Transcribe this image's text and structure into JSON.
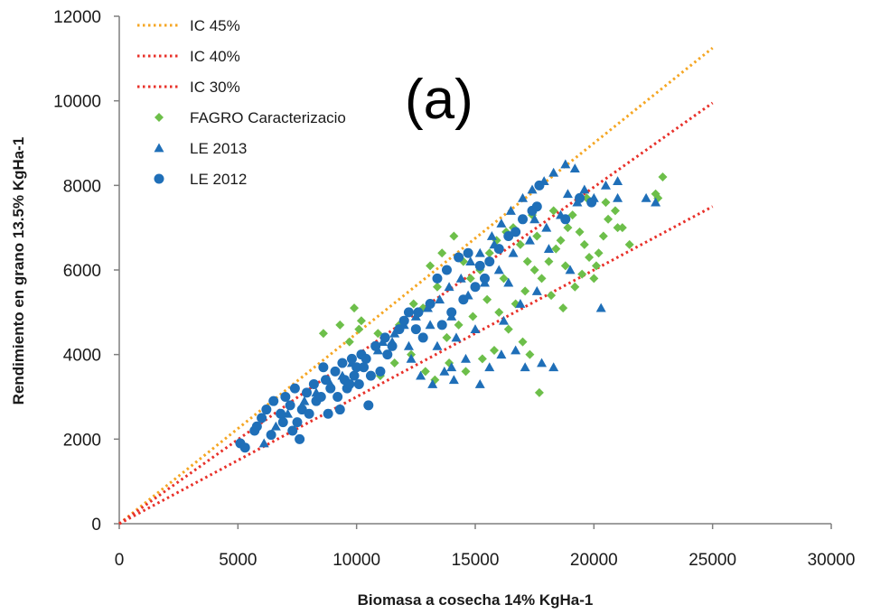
{
  "colors": {
    "ic45": "#f5a623",
    "ic40": "#e8312a",
    "ic30": "#e8312a",
    "fagro": "#6dbf4a",
    "le2013": "#1f6fb8",
    "le2012": "#1f6fb8",
    "axis": "#7f7f7f"
  },
  "chart_data": {
    "type": "scatter",
    "title": "",
    "panel_label": "(a)",
    "xlabel": "Biomasa a cosecha 14% KgHa-1",
    "ylabel": "Rendimiento en grano 13.5% KgHa-1",
    "xlim": [
      0,
      30000
    ],
    "ylim": [
      0,
      12000
    ],
    "x_ticks": [
      "0",
      "5000",
      "10000",
      "15000",
      "20000",
      "25000",
      "30000"
    ],
    "y_ticks": [
      "0",
      "2000",
      "4000",
      "6000",
      "8000",
      "10000",
      "12000"
    ],
    "grid": false,
    "legend_position": "top-left",
    "legend": [
      {
        "label": "IC 45%",
        "kind": "dotted-line",
        "color": "#f5a623"
      },
      {
        "label": "IC 40%",
        "kind": "dotted-line",
        "color": "#e8312a"
      },
      {
        "label": "IC 30%",
        "kind": "dotted-line",
        "color": "#e8312a"
      },
      {
        "label": "FAGRO Caracterizacio",
        "kind": "diamond",
        "color": "#6dbf4a"
      },
      {
        "label": "LE 2013",
        "kind": "triangle",
        "color": "#1f6fb8"
      },
      {
        "label": "LE 2012",
        "kind": "circle",
        "color": "#1f6fb8"
      }
    ],
    "lines": [
      {
        "name": "IC 45%",
        "x": [
          0,
          25000
        ],
        "y": [
          0,
          11250
        ],
        "color": "#f5a623"
      },
      {
        "name": "IC 40%",
        "x": [
          0,
          25000
        ],
        "y": [
          0,
          9950
        ],
        "color": "#e8312a"
      },
      {
        "name": "IC 30%",
        "x": [
          0,
          25000
        ],
        "y": [
          0,
          7500
        ],
        "color": "#e8312a"
      }
    ],
    "series": [
      {
        "name": "FAGRO Caracterizacio",
        "marker": "diamond",
        "color": "#6dbf4a",
        "points": [
          [
            8600,
            4500
          ],
          [
            9300,
            4700
          ],
          [
            9900,
            5100
          ],
          [
            10200,
            4800
          ],
          [
            10100,
            4600
          ],
          [
            10900,
            4500
          ],
          [
            9700,
            4300
          ],
          [
            11800,
            4700
          ],
          [
            12400,
            5200
          ],
          [
            12800,
            5100
          ],
          [
            13400,
            5600
          ],
          [
            13100,
            6100
          ],
          [
            13600,
            6400
          ],
          [
            14100,
            6800
          ],
          [
            14500,
            6200
          ],
          [
            14800,
            5800
          ],
          [
            15200,
            6000
          ],
          [
            15600,
            6400
          ],
          [
            15900,
            6700
          ],
          [
            16300,
            6900
          ],
          [
            16600,
            7000
          ],
          [
            16900,
            6600
          ],
          [
            17200,
            6200
          ],
          [
            17500,
            6000
          ],
          [
            17800,
            5800
          ],
          [
            18100,
            6200
          ],
          [
            18400,
            6500
          ],
          [
            18600,
            6700
          ],
          [
            18900,
            7000
          ],
          [
            19100,
            7300
          ],
          [
            19400,
            6900
          ],
          [
            19600,
            6600
          ],
          [
            19800,
            6300
          ],
          [
            20100,
            6100
          ],
          [
            20400,
            6800
          ],
          [
            20600,
            7200
          ],
          [
            20900,
            7400
          ],
          [
            21200,
            7000
          ],
          [
            21500,
            6600
          ],
          [
            22700,
            7700
          ],
          [
            22900,
            8200
          ],
          [
            22600,
            7800
          ],
          [
            16000,
            5000
          ],
          [
            16400,
            4600
          ],
          [
            17000,
            4300
          ],
          [
            17300,
            4000
          ],
          [
            17700,
            3100
          ],
          [
            15800,
            4100
          ],
          [
            15300,
            3900
          ],
          [
            14600,
            3600
          ],
          [
            13900,
            3800
          ],
          [
            13300,
            3400
          ],
          [
            12900,
            3600
          ],
          [
            12300,
            4000
          ],
          [
            11600,
            3800
          ],
          [
            11000,
            3500
          ],
          [
            18200,
            5400
          ],
          [
            18700,
            5100
          ],
          [
            19200,
            5600
          ],
          [
            19500,
            5900
          ],
          [
            20000,
            5800
          ],
          [
            20200,
            6400
          ],
          [
            17100,
            5500
          ],
          [
            16700,
            5200
          ],
          [
            15500,
            5300
          ],
          [
            14900,
            4900
          ],
          [
            14300,
            4700
          ],
          [
            13800,
            4400
          ],
          [
            17600,
            6800
          ],
          [
            18300,
            7400
          ],
          [
            19700,
            7700
          ],
          [
            20500,
            7600
          ],
          [
            21000,
            7000
          ],
          [
            17400,
            7300
          ],
          [
            16200,
            5800
          ],
          [
            18800,
            6100
          ]
        ]
      },
      {
        "name": "LE 2013",
        "marker": "triangle",
        "color": "#1f6fb8",
        "points": [
          [
            6100,
            1900
          ],
          [
            6600,
            2300
          ],
          [
            7100,
            2600
          ],
          [
            7800,
            2900
          ],
          [
            8300,
            3100
          ],
          [
            8900,
            3300
          ],
          [
            9400,
            3500
          ],
          [
            9800,
            3800
          ],
          [
            10300,
            4000
          ],
          [
            10900,
            4100
          ],
          [
            11500,
            4300
          ],
          [
            12000,
            4700
          ],
          [
            12500,
            4900
          ],
          [
            13000,
            5100
          ],
          [
            13500,
            5300
          ],
          [
            13900,
            5600
          ],
          [
            14400,
            5800
          ],
          [
            14800,
            6200
          ],
          [
            15200,
            6400
          ],
          [
            15700,
            6800
          ],
          [
            16100,
            7100
          ],
          [
            16500,
            7400
          ],
          [
            17000,
            7700
          ],
          [
            17400,
            7900
          ],
          [
            17900,
            8100
          ],
          [
            18300,
            8300
          ],
          [
            18800,
            8500
          ],
          [
            19200,
            8400
          ],
          [
            19600,
            7900
          ],
          [
            20000,
            7700
          ],
          [
            20500,
            8000
          ],
          [
            21000,
            8100
          ],
          [
            22200,
            7700
          ],
          [
            22600,
            7600
          ],
          [
            12700,
            3500
          ],
          [
            13200,
            3300
          ],
          [
            13700,
            3600
          ],
          [
            14100,
            3400
          ],
          [
            14600,
            3900
          ],
          [
            15200,
            3300
          ],
          [
            15600,
            3700
          ],
          [
            16100,
            4000
          ],
          [
            16700,
            4100
          ],
          [
            17100,
            3700
          ],
          [
            17800,
            3800
          ],
          [
            18300,
            3700
          ],
          [
            11100,
            4300
          ],
          [
            11600,
            4500
          ],
          [
            12200,
            4200
          ],
          [
            13100,
            4700
          ],
          [
            14000,
            4900
          ],
          [
            14700,
            5400
          ],
          [
            15400,
            5700
          ],
          [
            16000,
            6000
          ],
          [
            16600,
            6400
          ],
          [
            17300,
            6700
          ],
          [
            18000,
            7000
          ],
          [
            18600,
            7300
          ],
          [
            19300,
            7600
          ],
          [
            20300,
            5100
          ],
          [
            19000,
            6000
          ],
          [
            17600,
            5500
          ],
          [
            16900,
            5200
          ],
          [
            16200,
            4800
          ],
          [
            15000,
            4600
          ],
          [
            14200,
            4400
          ],
          [
            13400,
            4200
          ],
          [
            12300,
            3900
          ],
          [
            15800,
            6600
          ],
          [
            17500,
            7200
          ],
          [
            18900,
            7800
          ],
          [
            21000,
            7700
          ],
          [
            14000,
            3700
          ],
          [
            16400,
            5700
          ],
          [
            18100,
            6500
          ]
        ]
      },
      {
        "name": "LE 2012",
        "marker": "circle",
        "color": "#1f6fb8",
        "points": [
          [
            5100,
            1900
          ],
          [
            5300,
            1800
          ],
          [
            5700,
            2200
          ],
          [
            6000,
            2500
          ],
          [
            6200,
            2700
          ],
          [
            6500,
            2900
          ],
          [
            6800,
            2600
          ],
          [
            7000,
            3000
          ],
          [
            7200,
            2800
          ],
          [
            7400,
            3200
          ],
          [
            7500,
            2400
          ],
          [
            7700,
            2700
          ],
          [
            7900,
            3100
          ],
          [
            8000,
            2600
          ],
          [
            8200,
            3300
          ],
          [
            8300,
            2900
          ],
          [
            8500,
            3000
          ],
          [
            8700,
            3400
          ],
          [
            8900,
            3200
          ],
          [
            9100,
            3600
          ],
          [
            9200,
            3000
          ],
          [
            9400,
            3800
          ],
          [
            9500,
            3400
          ],
          [
            9600,
            3200
          ],
          [
            9800,
            3900
          ],
          [
            9900,
            3500
          ],
          [
            10000,
            3700
          ],
          [
            10100,
            3300
          ],
          [
            10200,
            4000
          ],
          [
            10400,
            3900
          ],
          [
            10600,
            3500
          ],
          [
            10800,
            4200
          ],
          [
            11000,
            3600
          ],
          [
            11200,
            4400
          ],
          [
            11500,
            4200
          ],
          [
            11800,
            4600
          ],
          [
            12000,
            4800
          ],
          [
            12200,
            5000
          ],
          [
            12500,
            4600
          ],
          [
            12800,
            4400
          ],
          [
            13100,
            5200
          ],
          [
            13400,
            5800
          ],
          [
            13800,
            6000
          ],
          [
            14300,
            6300
          ],
          [
            14700,
            6400
          ],
          [
            15200,
            6100
          ],
          [
            15600,
            6200
          ],
          [
            16000,
            6500
          ],
          [
            16400,
            6800
          ],
          [
            16700,
            6900
          ],
          [
            17000,
            7200
          ],
          [
            17400,
            7400
          ],
          [
            17600,
            7500
          ],
          [
            17700,
            8000
          ],
          [
            18800,
            7200
          ],
          [
            19400,
            7700
          ],
          [
            19900,
            7600
          ],
          [
            13600,
            4700
          ],
          [
            14000,
            5000
          ],
          [
            14500,
            5300
          ],
          [
            15000,
            5600
          ],
          [
            15400,
            5800
          ],
          [
            8800,
            2600
          ],
          [
            9300,
            2700
          ],
          [
            10500,
            2800
          ],
          [
            7300,
            2200
          ],
          [
            6400,
            2100
          ],
          [
            5800,
            2300
          ],
          [
            6900,
            2400
          ],
          [
            7600,
            2000
          ],
          [
            10300,
            3700
          ],
          [
            9700,
            3300
          ],
          [
            8600,
            3700
          ],
          [
            11300,
            4000
          ],
          [
            12600,
            5000
          ]
        ]
      }
    ]
  }
}
